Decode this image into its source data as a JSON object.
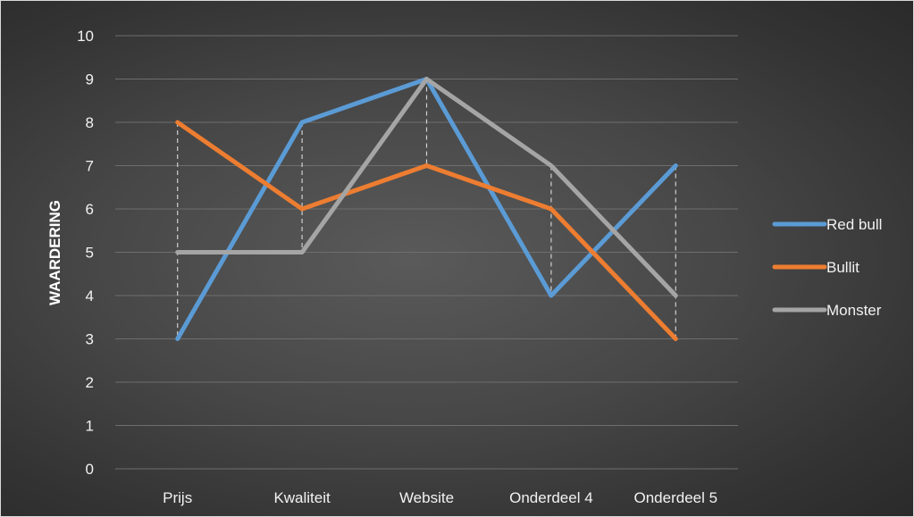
{
  "chart_data": {
    "type": "line",
    "title": "",
    "xlabel": "",
    "ylabel": "WAARDERING",
    "categories": [
      "Prijs",
      "Kwaliteit",
      "Website",
      "Onderdeel 4",
      "Onderdeel 5"
    ],
    "ylim": [
      0,
      10
    ],
    "yticks": [
      0,
      1,
      2,
      3,
      4,
      5,
      6,
      7,
      8,
      9,
      10
    ],
    "grid": true,
    "drop_lines": true,
    "legend_position": "right",
    "series": [
      {
        "name": "Red bull",
        "color": "#5b9bd5",
        "values": [
          3,
          8,
          9,
          4,
          7
        ]
      },
      {
        "name": "Bullit",
        "color": "#ed7d31",
        "values": [
          8,
          6,
          7,
          6,
          3
        ]
      },
      {
        "name": "Monster",
        "color": "#a5a5a5",
        "values": [
          5,
          5,
          9,
          7,
          4
        ]
      }
    ]
  }
}
